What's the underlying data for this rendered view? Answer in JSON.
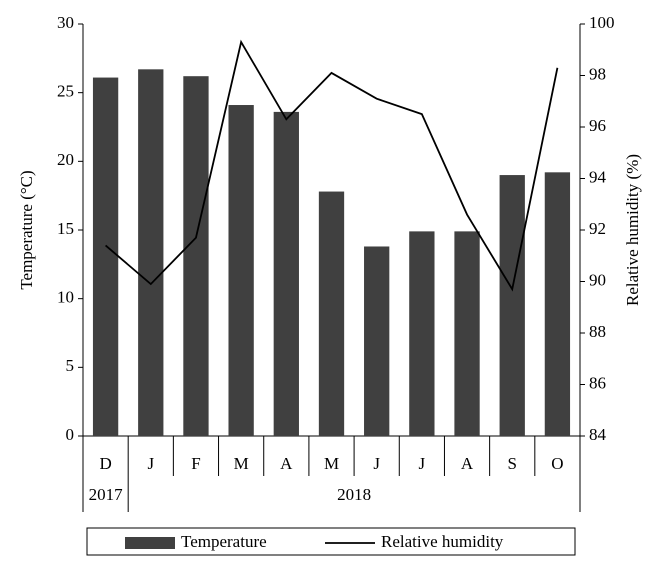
{
  "chart_data": {
    "type": "bar_line",
    "categories": [
      "D",
      "J",
      "F",
      "M",
      "A",
      "M",
      "J",
      "J",
      "A",
      "S",
      "O"
    ],
    "years": [
      "2017",
      "2018"
    ],
    "series": [
      {
        "name": "Temperature",
        "type": "bar",
        "color": "#404040",
        "values": [
          26.1,
          26.7,
          26.2,
          24.1,
          23.6,
          17.8,
          13.8,
          14.9,
          14.9,
          19.0,
          19.2
        ]
      },
      {
        "name": "Relative humidity",
        "type": "line",
        "axis": "y2",
        "color": "#000000",
        "values": [
          91.4,
          89.9,
          91.7,
          99.3,
          96.3,
          98.1,
          97.1,
          96.5,
          92.6,
          89.7,
          98.3
        ]
      }
    ],
    "ylabel": "Temperature (°C)",
    "y2label": "Relative humidity (%)",
    "ylim": [
      0,
      30
    ],
    "yticks": [
      0,
      5,
      10,
      15,
      20,
      25,
      30
    ],
    "y2lim": [
      84,
      100
    ],
    "y2ticks": [
      84,
      86,
      88,
      90,
      92,
      94,
      96,
      98,
      100
    ],
    "grid": false,
    "legend": "bottom"
  }
}
